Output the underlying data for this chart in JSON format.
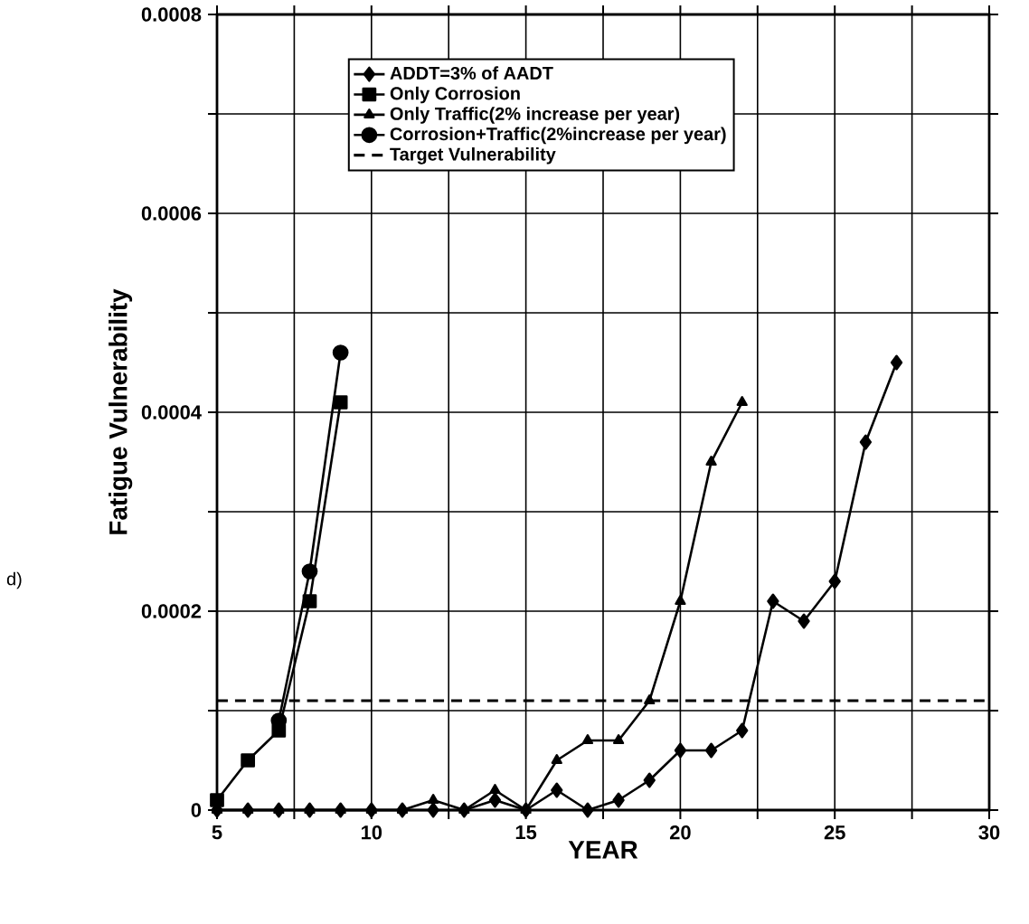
{
  "chart_data": {
    "type": "line",
    "xlabel": "YEAR",
    "ylabel": "Fatigue Vulnerability",
    "annotations": [
      "d)"
    ],
    "xlim": [
      5,
      30
    ],
    "ylim": [
      0,
      0.0008
    ],
    "xticks": [
      5,
      {
        "value": 7.5,
        "label": null
      },
      10,
      {
        "value": 12.5,
        "label": null
      },
      15,
      {
        "value": 17.5,
        "label": null
      },
      20,
      {
        "value": 22.5,
        "label": null
      },
      25,
      {
        "value": 27.5,
        "label": null
      },
      30
    ],
    "yticks": [
      0,
      {
        "value": 0.0001,
        "label": null
      },
      0.0002,
      {
        "value": 0.0003,
        "label": null
      },
      0.0004,
      {
        "value": 0.0005,
        "label": null
      },
      0.0006,
      {
        "value": 0.0007,
        "label": null
      },
      0.0008
    ],
    "grid": true,
    "legend": "top",
    "line_style": "solid",
    "series": [
      {
        "name": "ADDT=3% of AADT",
        "color": "#000000",
        "marker": "diamond",
        "x": [
          5,
          6,
          7,
          8,
          9,
          10,
          11,
          12,
          13,
          14,
          15,
          16,
          17,
          18,
          19,
          20,
          21,
          22,
          23,
          24,
          25,
          26,
          27
        ],
        "values": [
          0,
          0,
          0,
          0,
          0,
          0,
          0,
          0,
          0,
          1e-05,
          0,
          2e-05,
          0,
          1e-05,
          3e-05,
          6e-05,
          6e-05,
          8e-05,
          0.00021,
          0.00019,
          0.00023,
          0.00037,
          0.00045
        ]
      },
      {
        "name": "Only Corrosion",
        "color": "#000000",
        "marker": "square",
        "x": [
          5,
          6,
          7,
          8,
          9
        ],
        "values": [
          1e-05,
          5e-05,
          8e-05,
          0.00021,
          0.00041
        ]
      },
      {
        "name": "Only Traffic(2% increase per year)",
        "color": "#000000",
        "marker": "triangle",
        "x": [
          5,
          6,
          7,
          8,
          9,
          10,
          11,
          12,
          13,
          14,
          15,
          16,
          17,
          18,
          19,
          20,
          21,
          22
        ],
        "values": [
          0,
          0,
          0,
          0,
          0,
          0,
          0,
          1e-05,
          0,
          2e-05,
          0,
          5e-05,
          7e-05,
          7e-05,
          0.00011,
          0.00021,
          0.00035,
          0.00041
        ]
      },
      {
        "name": "Corrosion+Traffic(2%increase per year)",
        "color": "#000000",
        "marker": "circle",
        "x": [
          7,
          8,
          9
        ],
        "values": [
          9e-05,
          0.00024,
          0.00046
        ]
      }
    ],
    "ref_lines": [
      {
        "axis": "y",
        "value": 0.00011,
        "label": "Target Vulnerability",
        "color": "#000000",
        "line_style": "dashed"
      }
    ]
  }
}
